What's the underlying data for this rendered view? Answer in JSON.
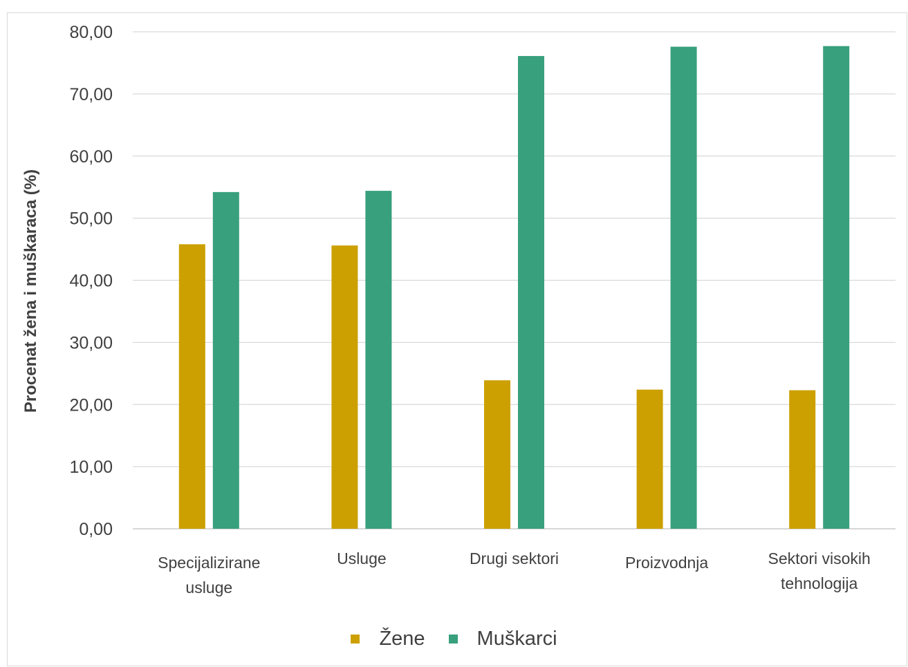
{
  "chart_data": {
    "type": "bar",
    "categories": [
      "Specijalizirane usluge",
      "Usluge",
      "Drugi sektori",
      "Proizvodnja",
      "Sektori visokih tehnologija"
    ],
    "category_lines": [
      [
        "Specijalizirane",
        "usluge"
      ],
      [
        "Usluge"
      ],
      [
        "Drugi sektori"
      ],
      [
        "Proizvodnja"
      ],
      [
        "Sektori visokih",
        "tehnologija"
      ]
    ],
    "series": [
      {
        "name": "Žene",
        "color": "#CCA000",
        "values": [
          45.8,
          45.6,
          23.9,
          22.4,
          22.3
        ]
      },
      {
        "name": "Muškarci",
        "color": "#38A07D",
        "values": [
          54.2,
          54.4,
          76.1,
          77.6,
          77.7
        ]
      }
    ],
    "title": "",
    "xlabel": "",
    "ylabel": "Procenat žena i muškaraca (%)",
    "ylim": [
      0,
      80
    ],
    "yticks": [
      "0,00",
      "10,00",
      "20,00",
      "30,00",
      "40,00",
      "50,00",
      "60,00",
      "70,00",
      "80,00"
    ],
    "grid": true,
    "legend_position": "bottom"
  }
}
